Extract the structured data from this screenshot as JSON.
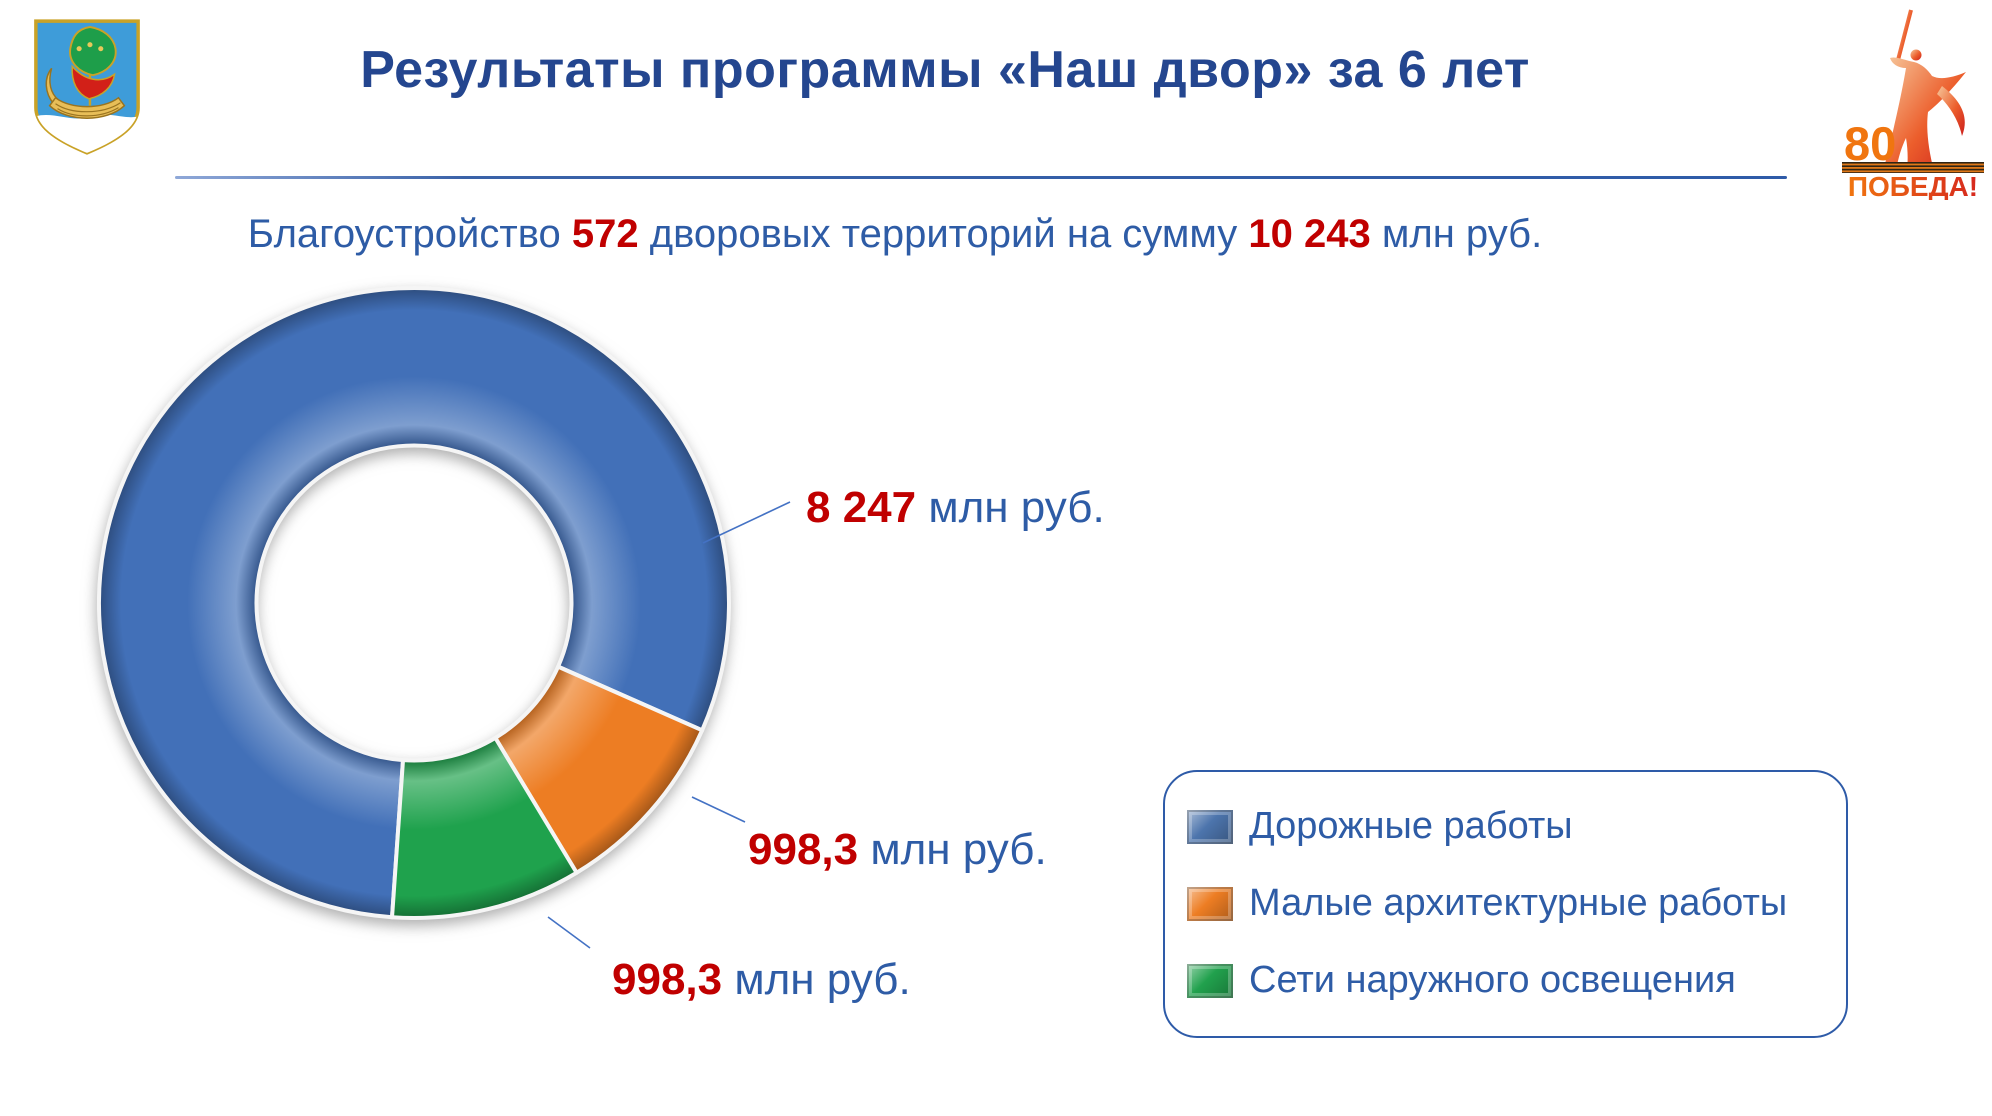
{
  "header": {
    "title": "Результаты программы «Наш двор» за 6 лет",
    "title_color": "#24468F"
  },
  "subtitle": {
    "prefix": "Благоустройство ",
    "count": "572",
    "middle": " дворовых территорий на сумму ",
    "total": "10 243",
    "suffix": " млн руб.",
    "text_color": "#2E5CA6",
    "number_color": "#C00000"
  },
  "logos": {
    "coat_of_arms": "naberezhnye-chelny-coat-of-arms",
    "victory": {
      "number": "80",
      "word": "ПОБЕДА!"
    }
  },
  "chart_data": {
    "type": "pie",
    "donut": true,
    "hole_ratio": 0.5,
    "start_angle_deg": 184,
    "title": "Результаты программы «Наш двор» за 6 лет",
    "caption": "Благоустройство 572 дворовых территорий на сумму 10 243 млн руб.",
    "categories": [
      "Дорожные работы",
      "Малые архитектурные работы",
      "Сети наружного освещения"
    ],
    "values": [
      8247,
      998.3,
      998.3
    ],
    "unit": "млн руб.",
    "colors": [
      "#4270B8",
      "#ED7D23",
      "#1FA24D"
    ],
    "legend_position": "right-bottom",
    "callouts": [
      {
        "value": "8 247",
        "unit": "млн руб."
      },
      {
        "value": "998,3",
        "unit": "млн руб."
      },
      {
        "value": "998,3",
        "unit": "млн руб."
      }
    ]
  },
  "legend": {
    "border_color": "#2E5BA8",
    "items": [
      {
        "label": "Дорожные работы",
        "color": "#4C74AC"
      },
      {
        "label": "Малые архитектурные работы",
        "color": "#ED7D23"
      },
      {
        "label": "Сети наружного освещения",
        "color": "#21A14D"
      }
    ]
  }
}
